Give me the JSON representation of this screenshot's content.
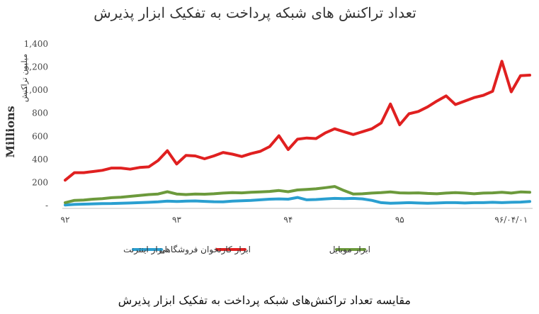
{
  "chart_data": {
    "type": "line",
    "title": "تعداد تراکنش های شبکه پرداخت به تفکیک ابزار پذیرش",
    "caption": "مقایسه تعداد تراکنش‌های شبکه پرداخت به تفکیک ابزار پذیرش",
    "ylabel": "Millions",
    "ylabel_fa": "میلیون تراکنش",
    "ylim": [
      0,
      1400
    ],
    "yticks": [
      0,
      200,
      400,
      600,
      800,
      1000,
      1200,
      1400
    ],
    "ytick_labels": [
      "-",
      "200",
      "400",
      "600",
      "800",
      "1,000",
      "1,200",
      "1,400"
    ],
    "xtick_labels": [
      "۹۲",
      "۹۳",
      "۹۴",
      "۹۵",
      "۹۶/۰۴/۰۱"
    ],
    "xtick_index": [
      0,
      12,
      24,
      36,
      48
    ],
    "grid": true,
    "legend_position": "bottom",
    "series": [
      {
        "name": "ابزار کارتخوان فروشگاهی",
        "color": "#e02020",
        "values": [
          220,
          285,
          285,
          295,
          305,
          325,
          325,
          315,
          330,
          335,
          390,
          475,
          360,
          435,
          430,
          405,
          430,
          460,
          445,
          425,
          450,
          470,
          510,
          605,
          485,
          575,
          585,
          580,
          630,
          665,
          640,
          615,
          640,
          665,
          715,
          880,
          700,
          795,
          815,
          855,
          905,
          950,
          875,
          905,
          935,
          955,
          990,
          1250,
          985,
          1125,
          1130
        ]
      },
      {
        "name": "ابزار موبایل",
        "color": "#6c9a3c",
        "values": [
          25,
          45,
          48,
          55,
          60,
          68,
          72,
          80,
          88,
          95,
          100,
          120,
          100,
          95,
          100,
          98,
          102,
          108,
          112,
          110,
          115,
          118,
          122,
          130,
          120,
          135,
          140,
          145,
          155,
          165,
          130,
          100,
          102,
          108,
          112,
          118,
          110,
          108,
          110,
          105,
          102,
          108,
          112,
          108,
          102,
          108,
          110,
          115,
          108,
          118,
          115
        ]
      },
      {
        "name": "ابزار اینترنت",
        "color": "#2a9fd0",
        "values": [
          5,
          10,
          12,
          15,
          17,
          18,
          20,
          22,
          25,
          28,
          32,
          38,
          35,
          38,
          40,
          36,
          33,
          32,
          38,
          42,
          45,
          50,
          55,
          58,
          55,
          70,
          50,
          52,
          58,
          62,
          60,
          62,
          58,
          45,
          25,
          20,
          22,
          25,
          22,
          20,
          22,
          25,
          25,
          22,
          25,
          25,
          28,
          25,
          28,
          30,
          35
        ]
      }
    ]
  }
}
